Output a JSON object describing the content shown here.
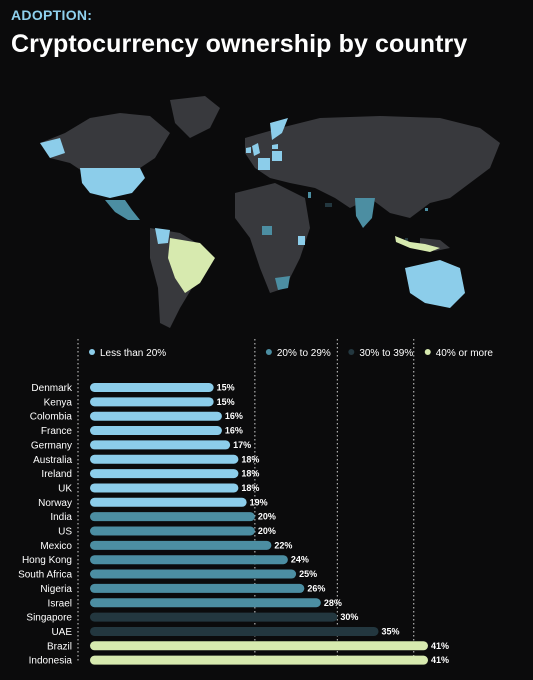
{
  "header": {
    "kicker": "ADOPTION:",
    "title": "Cryptocurrency ownership by country"
  },
  "colors": {
    "background": "#0b0b0c",
    "land_default": "#38393d",
    "less_than_20": "#8ccdea",
    "20_to_29": "#4c8ea2",
    "30_to_39": "#23373f",
    "40_or_more": "#d7eaaf"
  },
  "chart_data": {
    "type": "bar",
    "orientation": "horizontal",
    "title": "Cryptocurrency ownership by country",
    "categories": [
      "Denmark",
      "Kenya",
      "Colombia",
      "France",
      "Germany",
      "Australia",
      "Ireland",
      "UK",
      "Norway",
      "India",
      "US",
      "Mexico",
      "Hong Kong",
      "South Africa",
      "Nigeria",
      "Israel",
      "Singapore",
      "UAE",
      "Brazil",
      "Indonesia"
    ],
    "values": [
      15,
      15,
      16,
      16,
      17,
      18,
      18,
      18,
      19,
      20,
      20,
      22,
      24,
      25,
      26,
      28,
      30,
      35,
      41,
      41
    ],
    "value_labels": [
      "15%",
      "15%",
      "16%",
      "16%",
      "17%",
      "18%",
      "18%",
      "18%",
      "19%",
      "20%",
      "20%",
      "22%",
      "24%",
      "25%",
      "26%",
      "28%",
      "30%",
      "35%",
      "41%",
      "41%"
    ],
    "unit": "%",
    "xlim": [
      0,
      41
    ],
    "legend": {
      "placement": "top",
      "entries": [
        {
          "label": "Less than 20%",
          "color": "#8ccdea",
          "min": 0,
          "max": 19.99
        },
        {
          "label": "20% to 29%",
          "color": "#4c8ea2",
          "min": 20,
          "max": 29.99
        },
        {
          "label": "30% to 39%",
          "color": "#23373f",
          "min": 30,
          "max": 39.99
        },
        {
          "label": "40% or more",
          "color": "#d7eaaf",
          "min": 40,
          "max": 100
        }
      ]
    },
    "thresholds": [
      20,
      30,
      40
    ],
    "grid": "dotted vertical at legend thresholds"
  }
}
